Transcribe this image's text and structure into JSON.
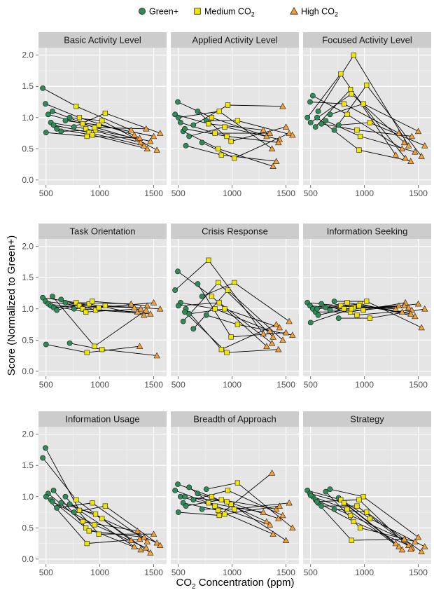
{
  "chart_data": {
    "type": "scatter",
    "ylabel": "Score (Normalized to Green+)",
    "xlabel": "Concentration (ppm)",
    "xlabel_prefix": "CO",
    "xlabel_sub": "2",
    "xlim": [
      430,
      1620
    ],
    "ylim": [
      -0.08,
      2.12
    ],
    "x_ticks": [
      500,
      1000,
      1500
    ],
    "y_ticks": [
      "0.0",
      "0.5",
      "1.0",
      "1.5",
      "2.0"
    ],
    "grid": true,
    "legend": {
      "position": "top",
      "entries": [
        {
          "label": "Green+",
          "sub": "",
          "shape": "circle",
          "color": "#2e8b57"
        },
        {
          "label": "Medium CO",
          "sub": "2",
          "shape": "square",
          "color": "#f2e600"
        },
        {
          "label": "High CO",
          "sub": "2",
          "shape": "triangle",
          "color": "#f5a030"
        }
      ]
    },
    "conditions": {
      "green_x": [
        470,
        495,
        520,
        545,
        570,
        600,
        640,
        680,
        720,
        760,
        500,
        560
      ],
      "medium_x": [
        780,
        810,
        840,
        870,
        900,
        930,
        960,
        990,
        1020,
        1050,
        880,
        950
      ],
      "high_x": [
        1290,
        1320,
        1350,
        1380,
        1410,
        1440,
        1470,
        1500,
        1530,
        1560,
        1370,
        1430
      ]
    },
    "panels": [
      {
        "title": "Basic Activity Level",
        "green": [
          1.47,
          1.22,
          1.05,
          0.92,
          0.88,
          0.82,
          0.78,
          0.95,
          1.0,
          0.85,
          0.76,
          1.1
        ],
        "medium": [
          1.18,
          1.0,
          0.9,
          0.82,
          0.76,
          0.72,
          0.8,
          0.88,
          0.95,
          1.07,
          0.7,
          0.84
        ],
        "high": [
          0.8,
          0.72,
          0.65,
          0.6,
          0.55,
          0.5,
          0.62,
          0.7,
          0.48,
          0.75,
          0.67,
          0.82
        ]
      },
      {
        "title": "Applied Activity Level",
        "green": [
          1.05,
          1.25,
          0.92,
          0.78,
          0.55,
          0.7,
          0.88,
          1.1,
          0.6,
          0.95,
          1.0,
          0.82
        ],
        "medium": [
          0.9,
          1.0,
          0.75,
          0.5,
          0.4,
          0.85,
          1.2,
          0.62,
          0.35,
          0.95,
          1.1,
          0.7
        ],
        "high": [
          0.8,
          0.7,
          0.75,
          0.22,
          0.3,
          0.65,
          1.18,
          0.85,
          0.75,
          0.72,
          0.5,
          0.6
        ]
      },
      {
        "title": "Focused Activity Level",
        "green": [
          1.0,
          1.25,
          1.35,
          0.85,
          1.1,
          0.9,
          0.95,
          1.05,
          0.8,
          0.88,
          0.92,
          1.0
        ],
        "medium": [
          1.7,
          1.22,
          1.05,
          1.45,
          2.0,
          0.8,
          0.7,
          1.22,
          1.52,
          0.92,
          1.38,
          0.48
        ],
        "high": [
          0.4,
          0.75,
          0.5,
          0.35,
          0.55,
          0.7,
          0.45,
          0.78,
          0.38,
          0.55,
          0.6,
          0.3
        ]
      },
      {
        "title": "Task Orientation",
        "green": [
          1.18,
          1.12,
          1.08,
          1.05,
          1.02,
          0.98,
          1.15,
          1.1,
          0.45,
          1.0,
          0.43,
          1.2
        ],
        "medium": [
          1.1,
          1.05,
          1.0,
          0.95,
          1.08,
          1.12,
          0.98,
          1.02,
          0.35,
          1.05,
          0.3,
          0.4
        ],
        "high": [
          1.08,
          1.02,
          0.95,
          1.0,
          0.9,
          1.05,
          0.92,
          1.1,
          0.25,
          1.0,
          0.4,
          0.98
        ]
      },
      {
        "title": "Crisis Response",
        "green": [
          1.3,
          1.6,
          1.1,
          0.8,
          1.0,
          0.92,
          0.68,
          1.4,
          1.2,
          0.9,
          1.05,
          0.95
        ],
        "medium": [
          1.78,
          1.2,
          1.0,
          1.42,
          0.35,
          1.0,
          1.3,
          0.55,
          1.42,
          0.75,
          1.1,
          0.3
        ],
        "high": [
          0.6,
          0.4,
          0.65,
          0.55,
          0.75,
          0.7,
          0.5,
          0.62,
          0.8,
          0.58,
          0.45,
          0.35
        ]
      },
      {
        "title": "Information Seeking",
        "green": [
          1.1,
          1.05,
          1.0,
          0.95,
          0.9,
          1.08,
          1.02,
          0.98,
          1.12,
          0.85,
          0.78,
          1.0
        ],
        "medium": [
          1.05,
          1.0,
          1.1,
          0.95,
          1.02,
          0.9,
          1.08,
          0.98,
          1.12,
          0.85,
          1.0,
          1.05
        ],
        "high": [
          1.0,
          1.05,
          0.95,
          1.1,
          1.02,
          0.98,
          0.88,
          1.08,
          0.7,
          1.0,
          1.05,
          0.92
        ]
      },
      {
        "title": "Information Usage",
        "green": [
          1.62,
          1.78,
          1.05,
          0.95,
          1.1,
          0.82,
          0.9,
          1.0,
          0.88,
          0.75,
          1.0,
          0.92
        ],
        "medium": [
          0.95,
          0.78,
          0.6,
          0.5,
          0.45,
          0.9,
          0.72,
          0.4,
          0.65,
          0.85,
          0.25,
          0.55
        ],
        "high": [
          0.3,
          0.2,
          0.45,
          0.15,
          0.35,
          0.28,
          0.1,
          0.4,
          0.26,
          0.22,
          0.32,
          0.18
        ]
      },
      {
        "title": "Breadth of Approach",
        "green": [
          1.1,
          1.2,
          1.0,
          0.9,
          0.85,
          1.15,
          0.95,
          1.05,
          0.8,
          1.12,
          0.75,
          1.0
        ],
        "medium": [
          0.9,
          1.0,
          0.85,
          0.78,
          0.95,
          0.72,
          1.1,
          0.88,
          0.8,
          1.22,
          0.7,
          0.92
        ],
        "high": [
          0.75,
          0.6,
          0.55,
          0.4,
          0.8,
          0.85,
          0.7,
          0.3,
          0.9,
          0.5,
          1.38,
          0.65
        ]
      },
      {
        "title": "Strategy",
        "green": [
          1.1,
          1.05,
          1.0,
          0.95,
          0.9,
          0.85,
          1.08,
          1.12,
          0.8,
          0.98,
          1.02,
          0.92
        ],
        "medium": [
          0.95,
          0.9,
          0.8,
          0.7,
          0.6,
          0.85,
          0.5,
          1.0,
          0.75,
          0.65,
          0.3,
          0.95
        ],
        "high": [
          0.25,
          0.2,
          0.15,
          0.3,
          0.22,
          0.18,
          0.28,
          0.35,
          0.12,
          0.2,
          0.32,
          0.16
        ]
      }
    ]
  }
}
